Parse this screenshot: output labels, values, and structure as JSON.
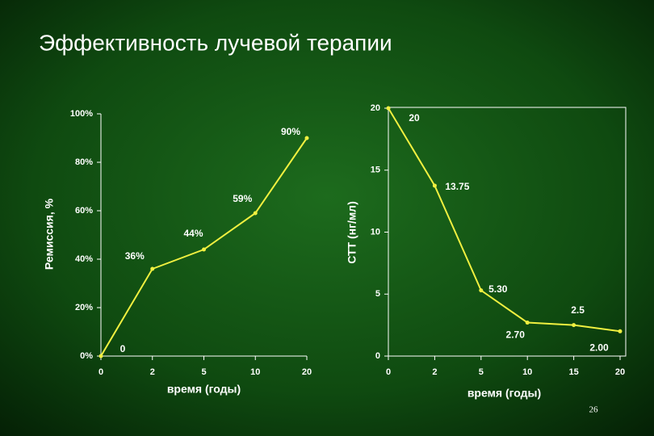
{
  "slide": {
    "title": "Эффективность лучевой терапии",
    "page_number": "26"
  },
  "chart_data": [
    {
      "type": "line",
      "y_label": "Ремиссия, %",
      "x_label": "время (годы)",
      "categories": [
        "0",
        "2",
        "5",
        "10",
        "20"
      ],
      "series": [
        {
          "color": "#f0f040",
          "values": [
            0,
            36,
            44,
            59,
            90
          ],
          "value_labels": [
            "0",
            "36%",
            "44%",
            "59%",
            "90%"
          ]
        }
      ],
      "ylim": [
        0,
        100
      ],
      "yticks": [
        {
          "value": 0,
          "label": "0%"
        },
        {
          "value": 20,
          "label": "20%"
        },
        {
          "value": 40,
          "label": "40%"
        },
        {
          "value": 60,
          "label": "60%"
        },
        {
          "value": 80,
          "label": "80%"
        },
        {
          "value": 100,
          "label": "100%"
        }
      ],
      "frame": false
    },
    {
      "type": "line",
      "y_label": "СТТ (нг/мл)",
      "x_label": "время (годы)",
      "categories": [
        "0",
        "2",
        "5",
        "10",
        "15",
        "20"
      ],
      "series": [
        {
          "color": "#f0f040",
          "values": [
            20,
            13.75,
            5.3,
            2.7,
            2.5,
            2.0
          ],
          "value_labels": [
            "20",
            "13.75",
            "5.30",
            "2.70",
            "2.5",
            "2.00"
          ]
        }
      ],
      "ylim": [
        0,
        20
      ],
      "yticks": [
        0,
        5,
        10,
        15,
        20
      ],
      "frame": true
    }
  ]
}
